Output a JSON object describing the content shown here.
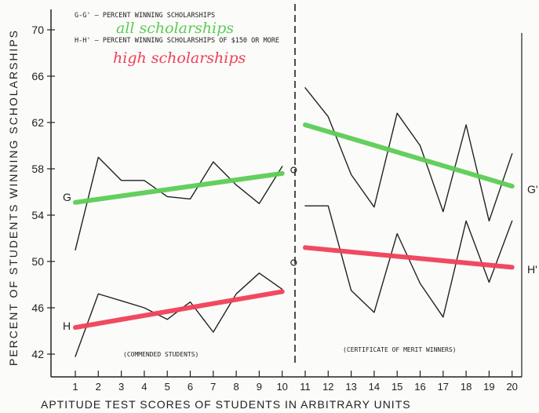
{
  "chart_data": {
    "type": "line",
    "ylabel": "PERCENT OF STUDENTS WINNING SCHOLARSHIPS",
    "xlabel": "APTITUDE TEST SCORES OF STUDENTS IN ARBITRARY UNITS",
    "ylim": [
      40,
      72
    ],
    "yticks": [
      42,
      46,
      50,
      54,
      58,
      62,
      66,
      70
    ],
    "xticks": [
      1,
      2,
      3,
      4,
      5,
      6,
      7,
      8,
      9,
      10,
      11,
      12,
      13,
      14,
      15,
      16,
      17,
      18,
      19,
      20
    ],
    "legend": {
      "gg_label": "G-G' — PERCENT WINNING SCHOLARSHIPS",
      "hh_label": "H-H' — PERCENT WINNING SCHOLARSHIPS OF $150 OR MORE",
      "gg_annotation": "all scholarships",
      "hh_annotation": "high scholarships",
      "gg_color": "#5ccc55",
      "hh_color": "#ef4058"
    },
    "panel_labels": [
      "(COMMENDED STUDENTS)",
      "(CERTIFICATE OF MERIT WINNERS)"
    ],
    "line_labels": {
      "g_left": "G",
      "h_left": "H",
      "g_right": "G'",
      "h_right": "H'"
    },
    "series": [
      {
        "id": "g_left",
        "x": [
          1,
          2,
          3,
          4,
          5,
          6,
          7,
          8,
          9,
          10
        ],
        "values": [
          51,
          59,
          57,
          57,
          55.6,
          55.4,
          58.6,
          56.6,
          55,
          58.2
        ]
      },
      {
        "id": "h_left",
        "x": [
          1,
          2,
          3,
          4,
          5,
          6,
          7,
          8,
          9,
          10
        ],
        "values": [
          41.8,
          47.2,
          46.6,
          46,
          45,
          46.5,
          43.9,
          47.2,
          49,
          47.6
        ]
      },
      {
        "id": "g_right",
        "x": [
          11,
          12,
          13,
          14,
          15,
          16,
          17,
          18,
          19,
          20
        ],
        "values": [
          65,
          62.5,
          57.5,
          54.7,
          62.8,
          60,
          54.3,
          61.8,
          53.5,
          59.3
        ]
      },
      {
        "id": "h_right",
        "x": [
          11,
          12,
          13,
          14,
          15,
          16,
          17,
          18,
          19,
          20
        ],
        "values": [
          54.8,
          54.8,
          47.5,
          45.6,
          52.4,
          48.1,
          45.2,
          53.5,
          48.2,
          53.5
        ]
      },
      {
        "id": "g_left_trend",
        "x": [
          1,
          10
        ],
        "values": [
          55.1,
          57.6
        ]
      },
      {
        "id": "h_left_trend",
        "x": [
          1,
          10
        ],
        "values": [
          44.3,
          47.4
        ]
      },
      {
        "id": "g_right_trend",
        "x": [
          11,
          20
        ],
        "values": [
          61.8,
          56.5
        ]
      },
      {
        "id": "h_right_trend",
        "x": [
          11,
          20
        ],
        "values": [
          51.2,
          49.5
        ]
      }
    ],
    "markers": [
      {
        "x": 10.5,
        "y": 57.9,
        "symbol": "o"
      },
      {
        "x": 10.5,
        "y": 49.9,
        "symbol": "o"
      }
    ]
  }
}
